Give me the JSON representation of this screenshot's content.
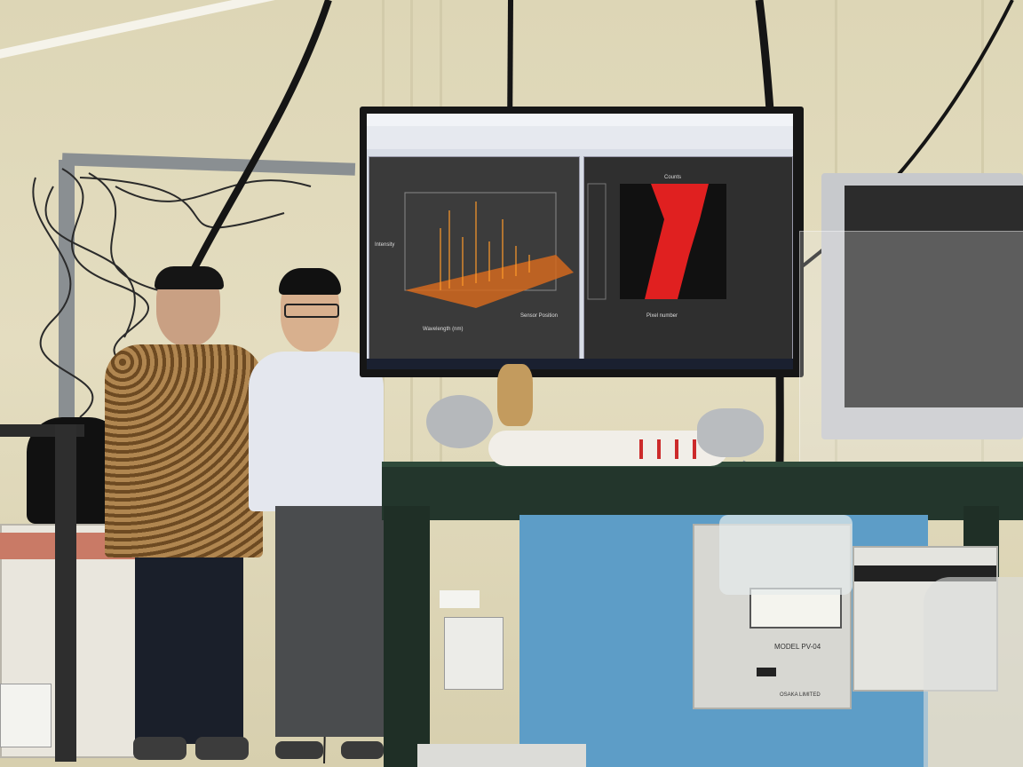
{
  "scene": {
    "description_tags": [
      "laboratory",
      "two-people",
      "monitor",
      "instruments"
    ]
  },
  "monitor": {
    "screen_title": "",
    "left_plot": {
      "ylabel": "Intensity",
      "xlabel": "Wavelength (nm)",
      "zlabel": "Sensor Position"
    },
    "right_plot": {
      "xlabel": "Pixel number",
      "title": "Counts"
    }
  },
  "instrument": {
    "model_label": "MODEL PV-04",
    "maker_label": "OSAKA LIMITED"
  },
  "colors": {
    "wall": "#ddd6b6",
    "table": "#23362c",
    "shirt_left": "#8a6a3a",
    "shirt_right": "#dfe3ea",
    "plot_accent": "#ff8a1a",
    "plot_red": "#e02020"
  }
}
